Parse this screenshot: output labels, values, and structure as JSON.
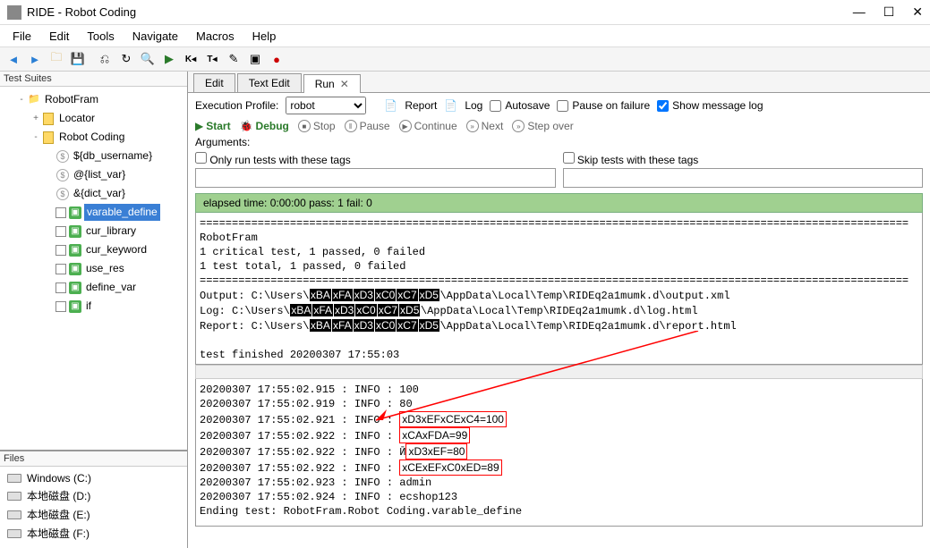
{
  "window": {
    "title": "RIDE - Robot Coding"
  },
  "menus": [
    "File",
    "Edit",
    "Tools",
    "Navigate",
    "Macros",
    "Help"
  ],
  "toolbar_icons": [
    "←",
    "→",
    "🗁",
    "💾",
    "⎌",
    "↻",
    "🔍",
    "▶",
    "K◂",
    "T◂",
    "✎",
    "▣",
    "●"
  ],
  "panels": {
    "test_suites": "Test Suites",
    "files": "Files"
  },
  "tree": [
    {
      "level": 1,
      "exp": "-",
      "icon": "folder",
      "label": "RobotFram"
    },
    {
      "level": 2,
      "exp": "+",
      "icon": "file",
      "label": "Locator"
    },
    {
      "level": 2,
      "exp": "-",
      "icon": "file",
      "label": "Robot Coding"
    },
    {
      "level": 3,
      "icon": "dollar",
      "label": "${db_username}"
    },
    {
      "level": 3,
      "icon": "dollar",
      "label": "@{list_var}"
    },
    {
      "level": 3,
      "icon": "dollar",
      "label": "&{dict_var}"
    },
    {
      "level": 3,
      "icon": "green",
      "chk": true,
      "label": "varable_define",
      "selected": true
    },
    {
      "level": 3,
      "icon": "green",
      "chk": true,
      "label": "cur_library"
    },
    {
      "level": 3,
      "icon": "green",
      "chk": true,
      "label": "cur_keyword"
    },
    {
      "level": 3,
      "icon": "green",
      "chk": true,
      "label": "use_res"
    },
    {
      "level": 3,
      "icon": "green",
      "chk": true,
      "label": "define_var"
    },
    {
      "level": 3,
      "icon": "green",
      "chk": true,
      "label": "if"
    }
  ],
  "drives": [
    "Windows (C:)",
    "本地磁盘 (D:)",
    "本地磁盘 (E:)",
    "本地磁盘 (F:)"
  ],
  "tabs": [
    {
      "label": "Edit",
      "active": false
    },
    {
      "label": "Text Edit",
      "active": false
    },
    {
      "label": "Run",
      "active": true,
      "close": true
    }
  ],
  "run": {
    "profile_label": "Execution Profile:",
    "profile_value": "robot",
    "report": "Report",
    "log": "Log",
    "autosave": "Autosave",
    "pause_on_failure": "Pause on failure",
    "show_msg_log": "Show message log",
    "show_msg_checked": true,
    "buttons": {
      "start": "Start",
      "debug": "Debug",
      "stop": "Stop",
      "pause": "Pause",
      "continue": "Continue",
      "next": "Next",
      "stepover": "Step over"
    },
    "args_label": "Arguments:",
    "only_tags": "Only run tests with these tags",
    "skip_tags": "Skip tests with these tags"
  },
  "status": "elapsed time: 0:00:00     pass: 1     fail: 0",
  "console1": {
    "sep": "==============================================================================================================",
    "line1": "RobotFram",
    "line2": "1 critical test, 1 passed, 0 failed",
    "line3": "1 test total, 1 passed, 0 failed",
    "out_label": "Output:  C:\\Users\\",
    "out_suffix": "\\AppData\\Local\\Temp\\RIDEq2a1mumk.d\\output.xml",
    "log_label": "Log:     C:\\Users\\",
    "log_suffix": "\\AppData\\Local\\Temp\\RIDEq2a1mumk.d\\log.html",
    "rpt_label": "Report:  C:\\Users\\",
    "rpt_suffix": "\\AppData\\Local\\Temp\\RIDEq2a1mumk.d\\report.html",
    "hex": [
      "xBA",
      "xFA",
      "xD3",
      "xC0",
      "xC7",
      "xD5"
    ],
    "finished": "test finished 20200307 17:55:03"
  },
  "console2": {
    "l1": "20200307 17:55:02.915 :  INFO : 100",
    "l2": "20200307 17:55:02.919 :  INFO : 80",
    "l3p": "20200307 17:55:02.921 :  INFO : ",
    "l3h": [
      "xD3",
      "xEF",
      "xCE",
      "xC4"
    ],
    "l3s": "=100",
    "l4p": "20200307 17:55:02.922 :  INFO : ",
    "l4h": [
      "xCA",
      "xFD"
    ],
    "l4s": "A=99",
    "l5p": "20200307 17:55:02.922 :  INFO : Ӣ",
    "l5h": [
      "xD3",
      "xEF"
    ],
    "l5s": "=80",
    "l6p": "20200307 17:55:02.922 :  INFO : ",
    "l6h": [
      "xCE",
      "xEF",
      "xC0",
      "xED"
    ],
    "l6s": "=89",
    "l7": "20200307 17:55:02.923 :  INFO : admin",
    "l8": "20200307 17:55:02.924 :  INFO : ecshop123",
    "l9": "Ending test:   RobotFram.Robot Coding.varable_define"
  },
  "colors": {
    "status_bg": "#a0d090",
    "selected": "#3a7fd5"
  }
}
